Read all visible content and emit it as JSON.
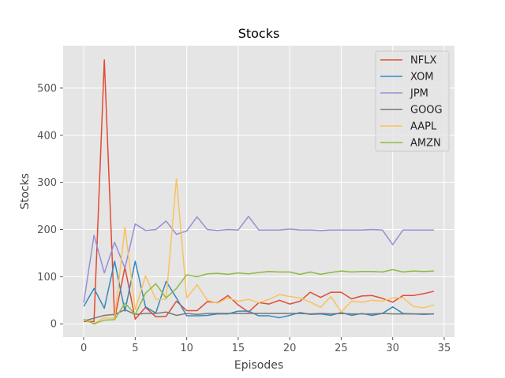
{
  "chart_data": {
    "type": "line",
    "title": "Stocks",
    "xlabel": "Episodes",
    "ylabel": "Stocks",
    "xlim": [
      -2,
      36
    ],
    "ylim": [
      -28,
      590
    ],
    "xticks": [
      0,
      5,
      10,
      15,
      20,
      25,
      30,
      35
    ],
    "yticks": [
      0,
      100,
      200,
      300,
      400,
      500
    ],
    "grid": true,
    "legend_position": "top-right",
    "series": [
      {
        "name": "NFLX",
        "color": "#E24A33",
        "values": [
          5,
          5,
          560,
          10,
          120,
          10,
          35,
          15,
          16,
          48,
          28,
          28,
          47,
          45,
          60,
          40,
          25,
          45,
          42,
          50,
          42,
          48,
          67,
          56,
          67,
          67,
          53,
          59,
          60,
          54,
          46,
          60,
          60,
          64,
          69
        ]
      },
      {
        "name": "XOM",
        "color": "#348ABD",
        "values": [
          37,
          75,
          33,
          133,
          27,
          133,
          36,
          23,
          90,
          55,
          17,
          17,
          18,
          21,
          21,
          27,
          27,
          17,
          17,
          13,
          18,
          24,
          20,
          21,
          18,
          24,
          18,
          22,
          18,
          22,
          36,
          22,
          21,
          20,
          21
        ]
      },
      {
        "name": "JPM",
        "color": "#988ED5",
        "values": [
          45,
          188,
          108,
          173,
          118,
          212,
          198,
          200,
          218,
          190,
          197,
          227,
          200,
          198,
          200,
          199,
          228,
          199,
          199,
          199,
          201,
          199,
          199,
          198,
          199,
          199,
          199,
          199,
          200,
          199,
          168,
          199,
          199,
          199,
          199
        ]
      },
      {
        "name": "GOOG",
        "color": "#777777",
        "values": [
          6,
          12,
          18,
          20,
          30,
          20,
          22,
          22,
          25,
          18,
          22,
          20,
          22,
          22,
          22,
          22,
          22,
          22,
          22,
          22,
          22,
          22,
          21,
          22,
          21,
          22,
          21,
          21,
          21,
          22,
          21,
          21,
          21,
          21,
          21
        ]
      },
      {
        "name": "AAPL",
        "color": "#FBC15E",
        "values": [
          8,
          1,
          13,
          12,
          205,
          30,
          102,
          52,
          52,
          308,
          55,
          83,
          50,
          44,
          55,
          48,
          52,
          45,
          52,
          62,
          58,
          55,
          46,
          35,
          58,
          25,
          48,
          46,
          50,
          48,
          55,
          55,
          37,
          34,
          40
        ]
      },
      {
        "name": "AMZN",
        "color": "#8EBA42",
        "values": [
          10,
          0,
          8,
          9,
          44,
          20,
          65,
          85,
          55,
          75,
          104,
          100,
          106,
          107,
          105,
          108,
          106,
          109,
          111,
          110,
          110,
          105,
          110,
          105,
          109,
          112,
          110,
          111,
          111,
          110,
          115,
          110,
          112,
          111,
          112
        ]
      }
    ]
  }
}
